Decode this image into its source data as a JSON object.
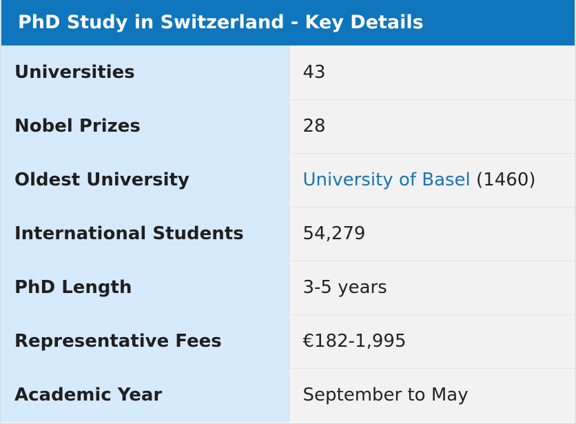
{
  "header": {
    "title": "PhD Study in Switzerland - Key Details"
  },
  "rows": [
    {
      "label": "Universities",
      "value": "43"
    },
    {
      "label": "Nobel Prizes",
      "value": "28"
    },
    {
      "label": "Oldest University",
      "link_text": "University of Basel",
      "value_suffix": " (1460)"
    },
    {
      "label": "International Students",
      "value": "54,279"
    },
    {
      "label": "PhD Length",
      "value": "3-5 years"
    },
    {
      "label": "Representative Fees",
      "value": "€182-1,995"
    },
    {
      "label": "Academic Year",
      "value": "September to May"
    }
  ],
  "colors": {
    "header_bg": "#0f75bc",
    "label_bg": "#d5eafc",
    "value_bg": "#f2f2f2",
    "link": "#1a73b5"
  }
}
